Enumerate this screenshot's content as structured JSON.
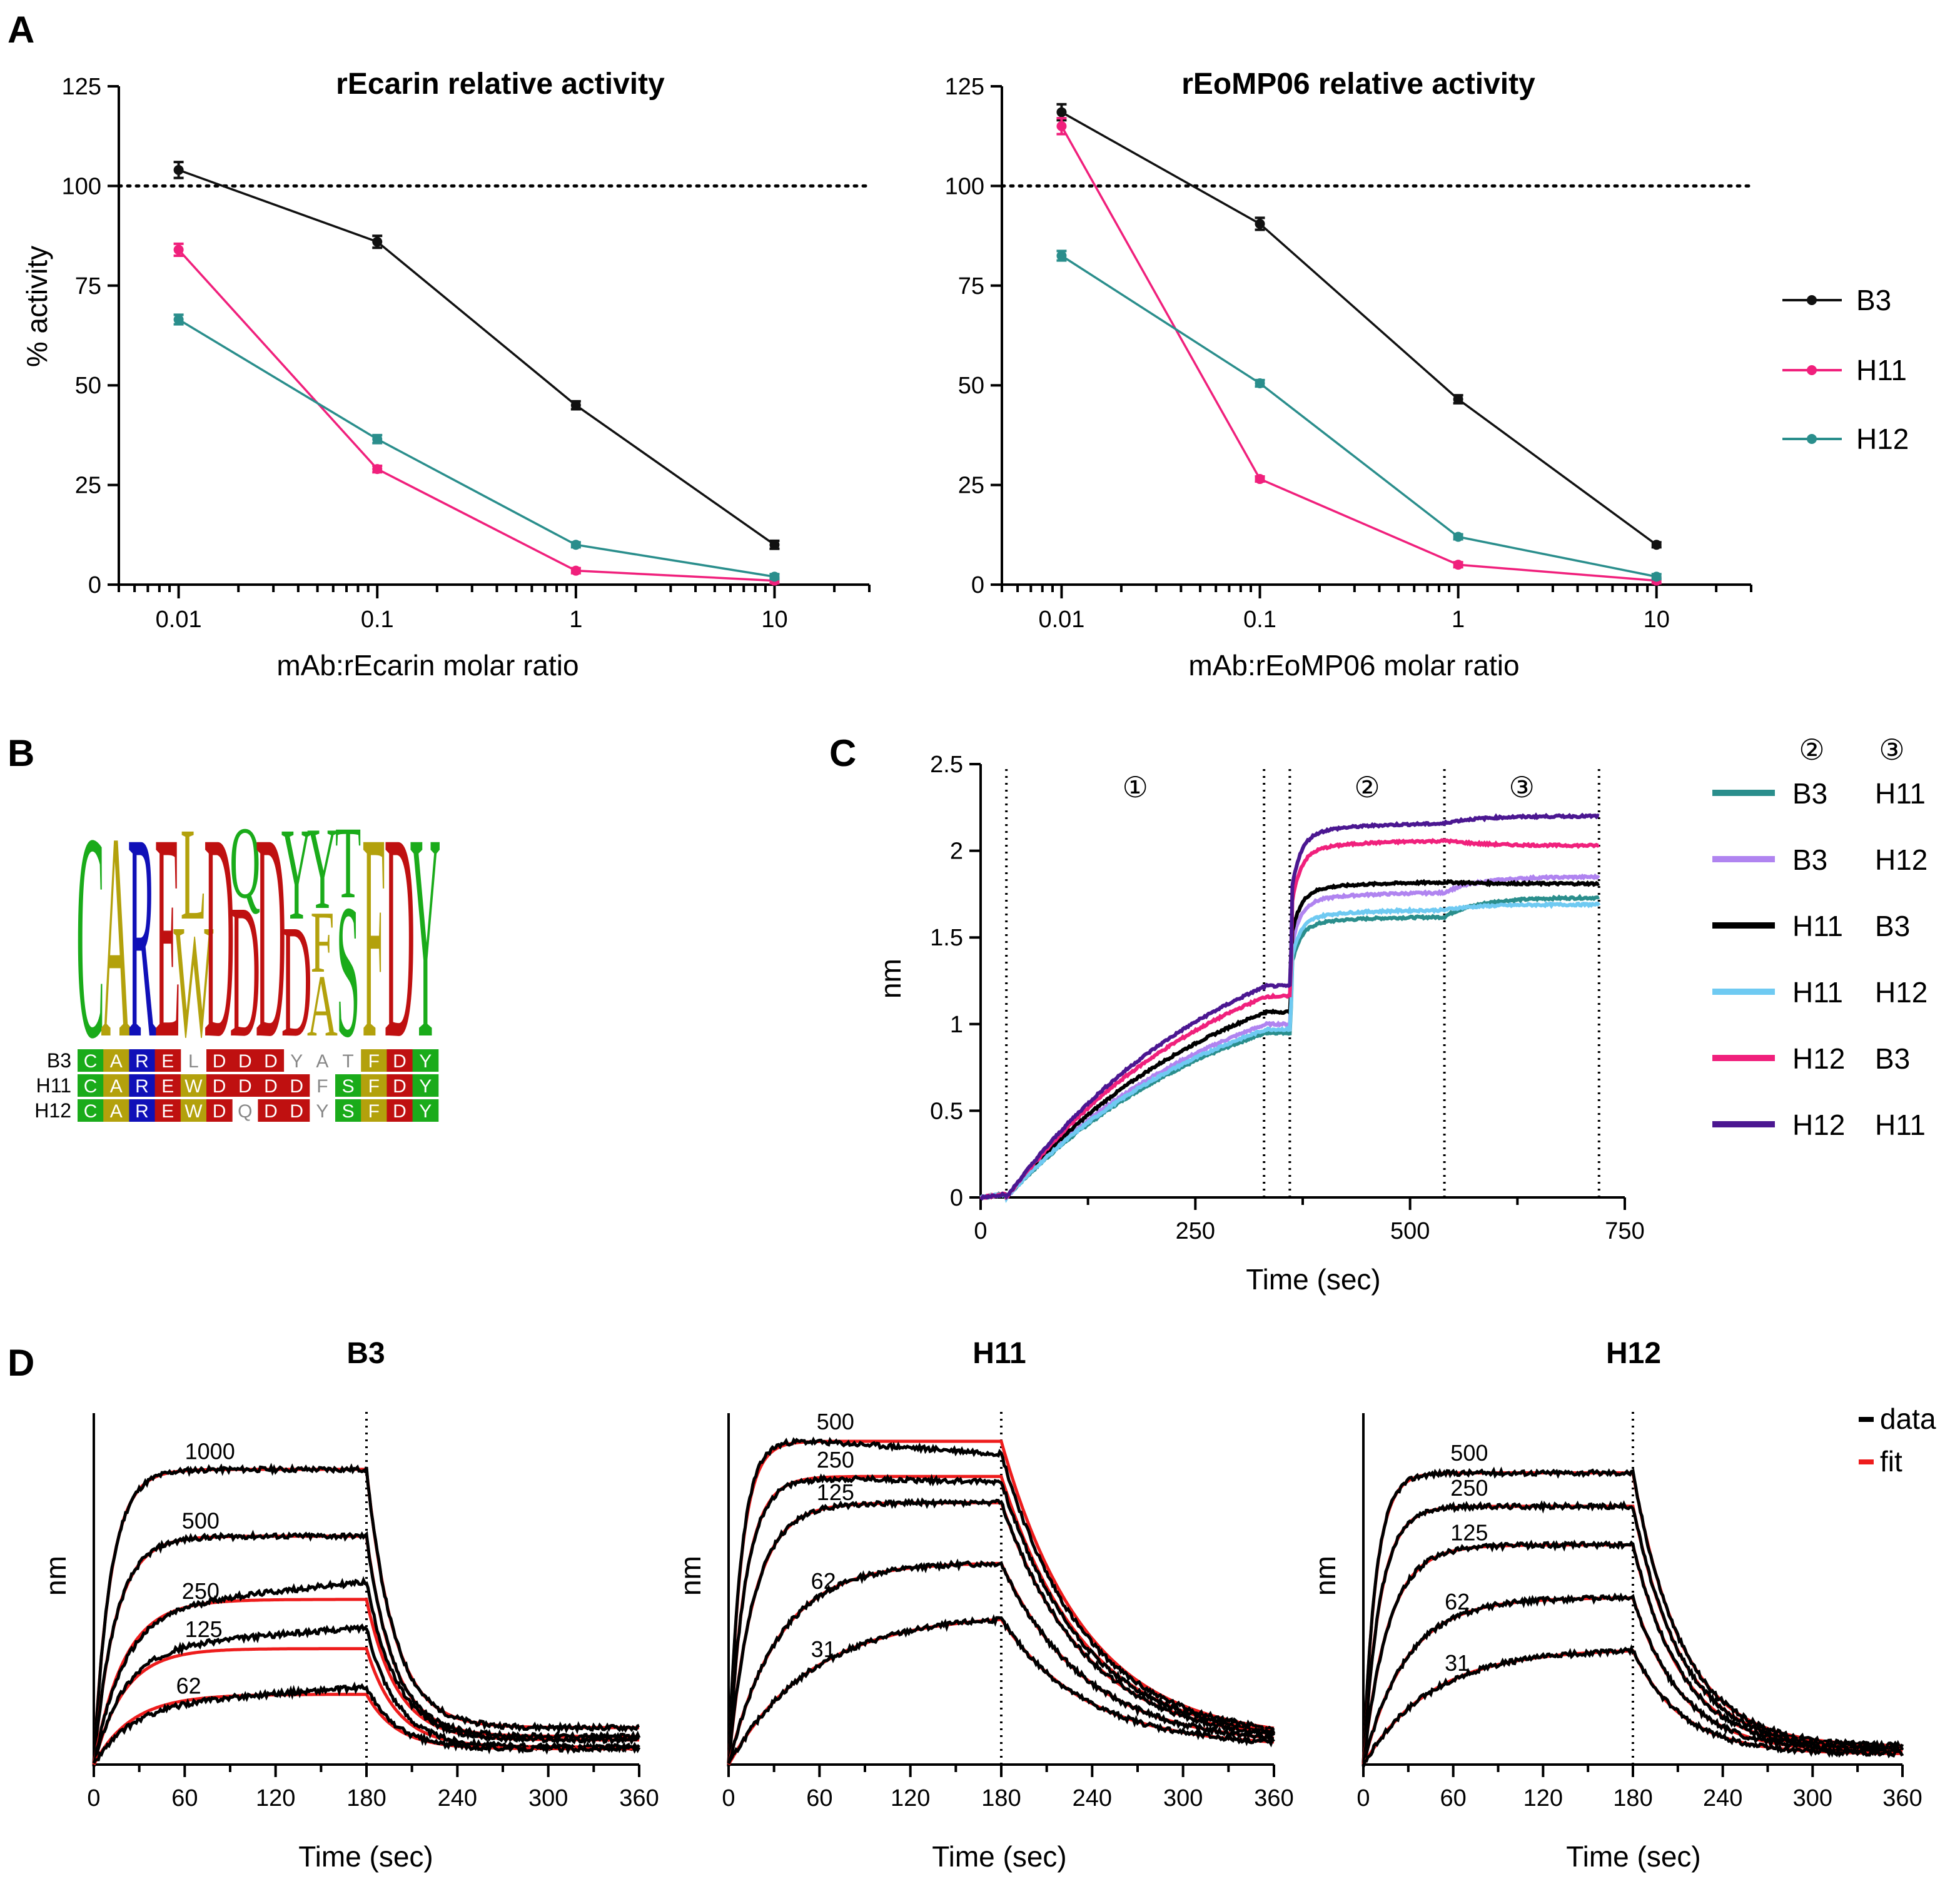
{
  "panels": {
    "A": "A",
    "B": "B",
    "C": "C",
    "D": "D"
  },
  "colors": {
    "B3": "#111111",
    "H11": "#f0207c",
    "H12": "#2a8e8c",
    "fit": "#ee1c1c",
    "green": "#1aab1a",
    "olive": "#b3a10c",
    "blue": "#1010b8",
    "red": "#bf1010",
    "gray": "#888888"
  },
  "chart_data": [
    {
      "id": "A1",
      "type": "line",
      "title": "rEcarin relative activity",
      "xlabel": "mAb:rEcarin molar ratio",
      "ylabel": "% activity",
      "xscale": "log",
      "xlim": [
        0.005,
        30
      ],
      "ylim": [
        0,
        125
      ],
      "xticks": [
        0.01,
        0.1,
        1,
        10
      ],
      "xticklabels": [
        "0.01",
        "0.1",
        "1",
        "10"
      ],
      "yticks": [
        0,
        25,
        50,
        75,
        100,
        125
      ],
      "yticklabels": [
        "0",
        "25",
        "50",
        "75",
        "100",
        "125"
      ],
      "reference_line": 100,
      "x": [
        0.01,
        0.1,
        1,
        10
      ],
      "series": [
        {
          "name": "B3",
          "values": [
            104,
            86,
            45,
            10
          ],
          "err": [
            2,
            1.5,
            1,
            1
          ]
        },
        {
          "name": "H11",
          "values": [
            84,
            29,
            3.5,
            1
          ],
          "err": [
            1.5,
            0.8,
            0.3,
            0.2
          ]
        },
        {
          "name": "H12",
          "values": [
            66.5,
            36.5,
            10,
            2
          ],
          "err": [
            1.2,
            1,
            0.4,
            0.3
          ]
        }
      ]
    },
    {
      "id": "A2",
      "type": "line",
      "title": "rEoMP06 relative activity",
      "xlabel": "mAb:rEoMP06 molar ratio",
      "ylabel": "",
      "xscale": "log",
      "xlim": [
        0.005,
        30
      ],
      "ylim": [
        0,
        125
      ],
      "xticks": [
        0.01,
        0.1,
        1,
        10
      ],
      "xticklabels": [
        "0.01",
        "0.1",
        "1",
        "10"
      ],
      "yticks": [
        0,
        25,
        50,
        75,
        100,
        125
      ],
      "yticklabels": [
        "0",
        "25",
        "50",
        "75",
        "100",
        "125"
      ],
      "reference_line": 100,
      "x": [
        0.01,
        0.1,
        1,
        10
      ],
      "series": [
        {
          "name": "B3",
          "values": [
            118.5,
            90.5,
            46.5,
            10
          ],
          "err": [
            2,
            1.5,
            1,
            0.5
          ]
        },
        {
          "name": "H11",
          "values": [
            115,
            26.5,
            5,
            1
          ],
          "err": [
            2,
            0.6,
            0.3,
            0.2
          ]
        },
        {
          "name": "H12",
          "values": [
            82.5,
            50.5,
            12,
            2
          ],
          "err": [
            1.2,
            0.8,
            0.4,
            0.3
          ]
        }
      ],
      "legend": [
        "B3",
        "H11",
        "H12"
      ]
    },
    {
      "id": "C",
      "type": "line",
      "xlabel": "Time (sec)",
      "ylabel": "nm",
      "xlim": [
        0,
        750
      ],
      "ylim": [
        0,
        2.5
      ],
      "xticks": [
        0,
        250,
        500,
        750
      ],
      "xticklabels": [
        "0",
        "250",
        "500",
        "750"
      ],
      "yticks": [
        0,
        0.5,
        1,
        1.5,
        2,
        2.5
      ],
      "yticklabels": [
        "0",
        "0.5",
        "1",
        "1.5",
        "2",
        "2.5"
      ],
      "vlines": [
        30,
        330,
        360,
        540,
        720
      ],
      "step_labels": [
        {
          "label": "①",
          "x": 180
        },
        {
          "label": "②",
          "x": 450
        },
        {
          "label": "③",
          "x": 630
        }
      ],
      "legend_header": [
        "②",
        "③"
      ],
      "series": [
        {
          "step2": "B3",
          "step3": "H11",
          "color": "#2a8e8c",
          "a1": 0.95,
          "a2": 1.62,
          "a3": 1.73
        },
        {
          "step2": "B3",
          "step3": "H12",
          "color": "#b084f0",
          "a1": 1.0,
          "a2": 1.76,
          "a3": 1.85
        },
        {
          "step2": "H11",
          "step3": "B3",
          "color": "#000000",
          "a1": 1.07,
          "a2": 1.82,
          "a3": 1.81
        },
        {
          "step2": "H11",
          "step3": "H12",
          "color": "#6fcaf2",
          "a1": 0.97,
          "a2": 1.66,
          "a3": 1.69
        },
        {
          "step2": "H12",
          "step3": "B3",
          "color": "#f0207c",
          "a1": 1.16,
          "a2": 2.06,
          "a3": 2.03
        },
        {
          "step2": "H12",
          "step3": "H11",
          "color": "#4b1791",
          "a1": 1.22,
          "a2": 2.16,
          "a3": 2.2
        }
      ]
    },
    {
      "id": "D1",
      "type": "line",
      "title": "B3",
      "xlabel": "Time (sec)",
      "ylabel": "nm",
      "xlim": [
        0,
        360
      ],
      "xticks": [
        0,
        60,
        120,
        180,
        240,
        300,
        360
      ],
      "xticklabels": [
        "0",
        "60",
        "120",
        "180",
        "240",
        "300",
        "360"
      ],
      "vline": 180,
      "traces": [
        {
          "conc": "1000",
          "plateau": 0.84,
          "k_on": 0.09,
          "drift": 0.0,
          "fit": 0.84,
          "kd": 0.055,
          "floor": 0.105
        },
        {
          "conc": "500",
          "plateau": 0.65,
          "k_on": 0.07,
          "drift": 0.0,
          "fit": 0.65,
          "kd": 0.055,
          "floor": 0.08
        },
        {
          "conc": "250",
          "plateau": 0.44,
          "k_on": 0.05,
          "drift": 0.08,
          "fit": 0.47,
          "kd": 0.05,
          "floor": 0.07
        },
        {
          "conc": "125",
          "plateau": 0.33,
          "k_on": 0.05,
          "drift": 0.06,
          "fit": 0.33,
          "kd": 0.05,
          "floor": 0.05
        },
        {
          "conc": "62",
          "plateau": 0.17,
          "k_on": 0.04,
          "drift": 0.05,
          "fit": 0.2,
          "kd": 0.05,
          "floor": 0.045
        }
      ]
    },
    {
      "id": "D2",
      "type": "line",
      "title": "H11",
      "xlabel": "Time (sec)",
      "ylabel": "nm",
      "xlim": [
        0,
        360
      ],
      "xticks": [
        0,
        60,
        120,
        180,
        240,
        300,
        360
      ],
      "xticklabels": [
        "0",
        "60",
        "120",
        "180",
        "240",
        "300",
        "360"
      ],
      "vline": 180,
      "traces": [
        {
          "conc": "500",
          "plateau": 0.935,
          "k_on": 0.12,
          "drift": -0.05,
          "fit": 0.92,
          "kd": 0.018,
          "floor": 0.07
        },
        {
          "conc": "250",
          "plateau": 0.82,
          "k_on": 0.09,
          "drift": -0.015,
          "fit": 0.82,
          "kd": 0.018,
          "floor": 0.065
        },
        {
          "conc": "125",
          "plateau": 0.745,
          "k_on": 0.06,
          "drift": 0.0,
          "fit": 0.745,
          "kd": 0.018,
          "floor": 0.06
        },
        {
          "conc": "62",
          "plateau": 0.575,
          "k_on": 0.03,
          "drift": 0.0,
          "fit": 0.575,
          "kd": 0.018,
          "floor": 0.055
        },
        {
          "conc": "31",
          "plateau": 0.43,
          "k_on": 0.018,
          "drift": 0.0,
          "fit": 0.43,
          "kd": 0.018,
          "floor": 0.05
        }
      ]
    },
    {
      "id": "D3",
      "type": "line",
      "title": "H12",
      "xlabel": "Time (sec)",
      "ylabel": "nm",
      "legend": [
        "data",
        "fit"
      ],
      "xlim": [
        0,
        360
      ],
      "xticks": [
        0,
        60,
        120,
        180,
        240,
        300,
        360
      ],
      "xticklabels": [
        "0",
        "60",
        "120",
        "180",
        "240",
        "300",
        "360"
      ],
      "vline": 180,
      "traces": [
        {
          "conc": "500",
          "plateau": 0.83,
          "k_on": 0.12,
          "drift": 0.0,
          "fit": 0.83,
          "kd": 0.03,
          "floor": 0.05
        },
        {
          "conc": "250",
          "plateau": 0.735,
          "k_on": 0.09,
          "drift": 0.0,
          "fit": 0.735,
          "kd": 0.03,
          "floor": 0.045
        },
        {
          "conc": "125",
          "plateau": 0.625,
          "k_on": 0.06,
          "drift": 0.0,
          "fit": 0.625,
          "kd": 0.03,
          "floor": 0.04
        },
        {
          "conc": "62",
          "plateau": 0.475,
          "k_on": 0.035,
          "drift": 0.0,
          "fit": 0.475,
          "kd": 0.03,
          "floor": 0.035
        },
        {
          "conc": "31",
          "plateau": 0.33,
          "k_on": 0.022,
          "drift": 0.0,
          "fit": 0.33,
          "kd": 0.03,
          "floor": 0.03
        }
      ]
    }
  ],
  "sequence_logo": {
    "columns": [
      {
        "stack": [
          {
            "letter": "C",
            "color": "green",
            "h": 1.0
          }
        ]
      },
      {
        "stack": [
          {
            "letter": "A",
            "color": "olive",
            "h": 1.0
          }
        ]
      },
      {
        "stack": [
          {
            "letter": "R",
            "color": "blue",
            "h": 1.0
          }
        ]
      },
      {
        "stack": [
          {
            "letter": "E",
            "color": "red",
            "h": 1.0
          }
        ]
      },
      {
        "stack": [
          {
            "letter": "W",
            "color": "olive",
            "h": 0.55
          },
          {
            "letter": "L",
            "color": "olive",
            "h": 0.45
          }
        ]
      },
      {
        "stack": [
          {
            "letter": "D",
            "color": "red",
            "h": 1.0
          }
        ]
      },
      {
        "stack": [
          {
            "letter": "D",
            "color": "red",
            "h": 0.65
          },
          {
            "letter": "Q",
            "color": "green",
            "h": 0.35
          }
        ]
      },
      {
        "stack": [
          {
            "letter": "D",
            "color": "red",
            "h": 1.0
          }
        ]
      },
      {
        "stack": [
          {
            "letter": "D",
            "color": "red",
            "h": 0.55
          },
          {
            "letter": "Y",
            "color": "green",
            "h": 0.45
          }
        ]
      },
      {
        "stack": [
          {
            "letter": "A",
            "color": "olive",
            "h": 0.3
          },
          {
            "letter": "F",
            "color": "olive",
            "h": 0.3
          },
          {
            "letter": "Y",
            "color": "green",
            "h": 0.4
          }
        ]
      },
      {
        "stack": [
          {
            "letter": "S",
            "color": "green",
            "h": 0.65
          },
          {
            "letter": "T",
            "color": "green",
            "h": 0.35
          }
        ]
      },
      {
        "stack": [
          {
            "letter": "F",
            "color": "olive",
            "h": 1.0
          }
        ]
      },
      {
        "stack": [
          {
            "letter": "D",
            "color": "red",
            "h": 1.0
          }
        ]
      },
      {
        "stack": [
          {
            "letter": "Y",
            "color": "green",
            "h": 1.0
          }
        ]
      }
    ],
    "alignment": [
      {
        "name": "B3",
        "cells": [
          [
            "C",
            "green"
          ],
          [
            "A",
            "olive"
          ],
          [
            "R",
            "blue"
          ],
          [
            "E",
            "red"
          ],
          [
            "L",
            ""
          ],
          [
            "D",
            "red"
          ],
          [
            "D",
            "red"
          ],
          [
            "D",
            "red"
          ],
          [
            "Y",
            ""
          ],
          [
            "A",
            ""
          ],
          [
            "T",
            ""
          ],
          [
            "F",
            "olive"
          ],
          [
            "D",
            "red"
          ],
          [
            "Y",
            "green"
          ]
        ]
      },
      {
        "name": "H11",
        "cells": [
          [
            "C",
            "green"
          ],
          [
            "A",
            "olive"
          ],
          [
            "R",
            "blue"
          ],
          [
            "E",
            "red"
          ],
          [
            "W",
            "olive"
          ],
          [
            "D",
            "red"
          ],
          [
            "D",
            "red"
          ],
          [
            "D",
            "red"
          ],
          [
            "D",
            "red"
          ],
          [
            "F",
            ""
          ],
          [
            "S",
            "green"
          ],
          [
            "F",
            "olive"
          ],
          [
            "D",
            "red"
          ],
          [
            "Y",
            "green"
          ]
        ]
      },
      {
        "name": "H12",
        "cells": [
          [
            "C",
            "green"
          ],
          [
            "A",
            "olive"
          ],
          [
            "R",
            "blue"
          ],
          [
            "E",
            "red"
          ],
          [
            "W",
            "olive"
          ],
          [
            "D",
            "red"
          ],
          [
            "Q",
            ""
          ],
          [
            "D",
            "red"
          ],
          [
            "D",
            "red"
          ],
          [
            "Y",
            ""
          ],
          [
            "S",
            "green"
          ],
          [
            "F",
            "olive"
          ],
          [
            "D",
            "red"
          ],
          [
            "Y",
            "green"
          ]
        ]
      }
    ]
  }
}
